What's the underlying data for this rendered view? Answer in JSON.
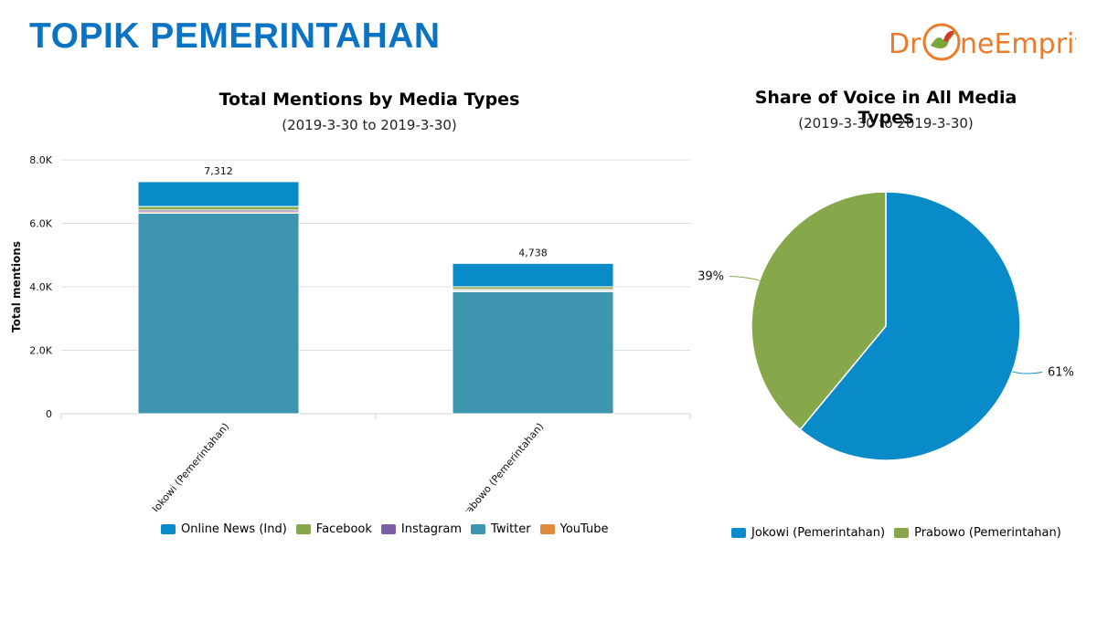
{
  "header": {
    "title": "TOPIK PEMERINTAHAN"
  },
  "logo": {
    "part1": "Dr",
    "part2": "neEmprit",
    "colors": {
      "orange": "#ea7b2a",
      "red": "#d9362a",
      "green": "#7aa63a"
    }
  },
  "colors": {
    "online_news": "#0a8bc9",
    "facebook": "#86a84a",
    "instagram": "#7b5ea7",
    "twitter": "#3e95b0",
    "youtube": "#e08a3c",
    "jokowi": "#0a8bc9",
    "prabowo": "#86a84a",
    "title_blue": "#0a73c4"
  },
  "chart_data": [
    {
      "type": "bar",
      "stacked": true,
      "title": "Total Mentions by Media Types",
      "subtitle": "(2019-3-30 to 2019-3-30)",
      "ylabel": "Total mentions",
      "ylim": [
        0,
        8000
      ],
      "yticks": [
        "0",
        "2.0K",
        "4.0K",
        "6.0K",
        "8.0K"
      ],
      "categories": [
        "Jokowi (Pemerintahan)",
        "Prabowo (Pemerintahan)"
      ],
      "totals_labels": [
        "7,312",
        "4,738"
      ],
      "series": [
        {
          "name": "Twitter",
          "values": [
            6320,
            3850
          ]
        },
        {
          "name": "YouTube",
          "values": [
            40,
            30
          ]
        },
        {
          "name": "Instagram",
          "values": [
            60,
            40
          ]
        },
        {
          "name": "Facebook",
          "values": [
            110,
            80
          ]
        },
        {
          "name": "Online News (Ind)",
          "values": [
            782,
            738
          ]
        }
      ],
      "legend_order": [
        "Online News (Ind)",
        "Facebook",
        "Instagram",
        "Twitter",
        "YouTube"
      ],
      "legend": "bottom",
      "grid": true
    },
    {
      "type": "pie",
      "title": "Share of Voice in All Media Types",
      "subtitle": "(2019-3-30 to 2019-3-30)",
      "slices": [
        {
          "name": "Jokowi (Pemerintahan)",
          "value": 61,
          "label": "61%"
        },
        {
          "name": "Prabowo (Pemerintahan)",
          "value": 39,
          "label": "39%"
        }
      ],
      "legend": "bottom"
    }
  ]
}
